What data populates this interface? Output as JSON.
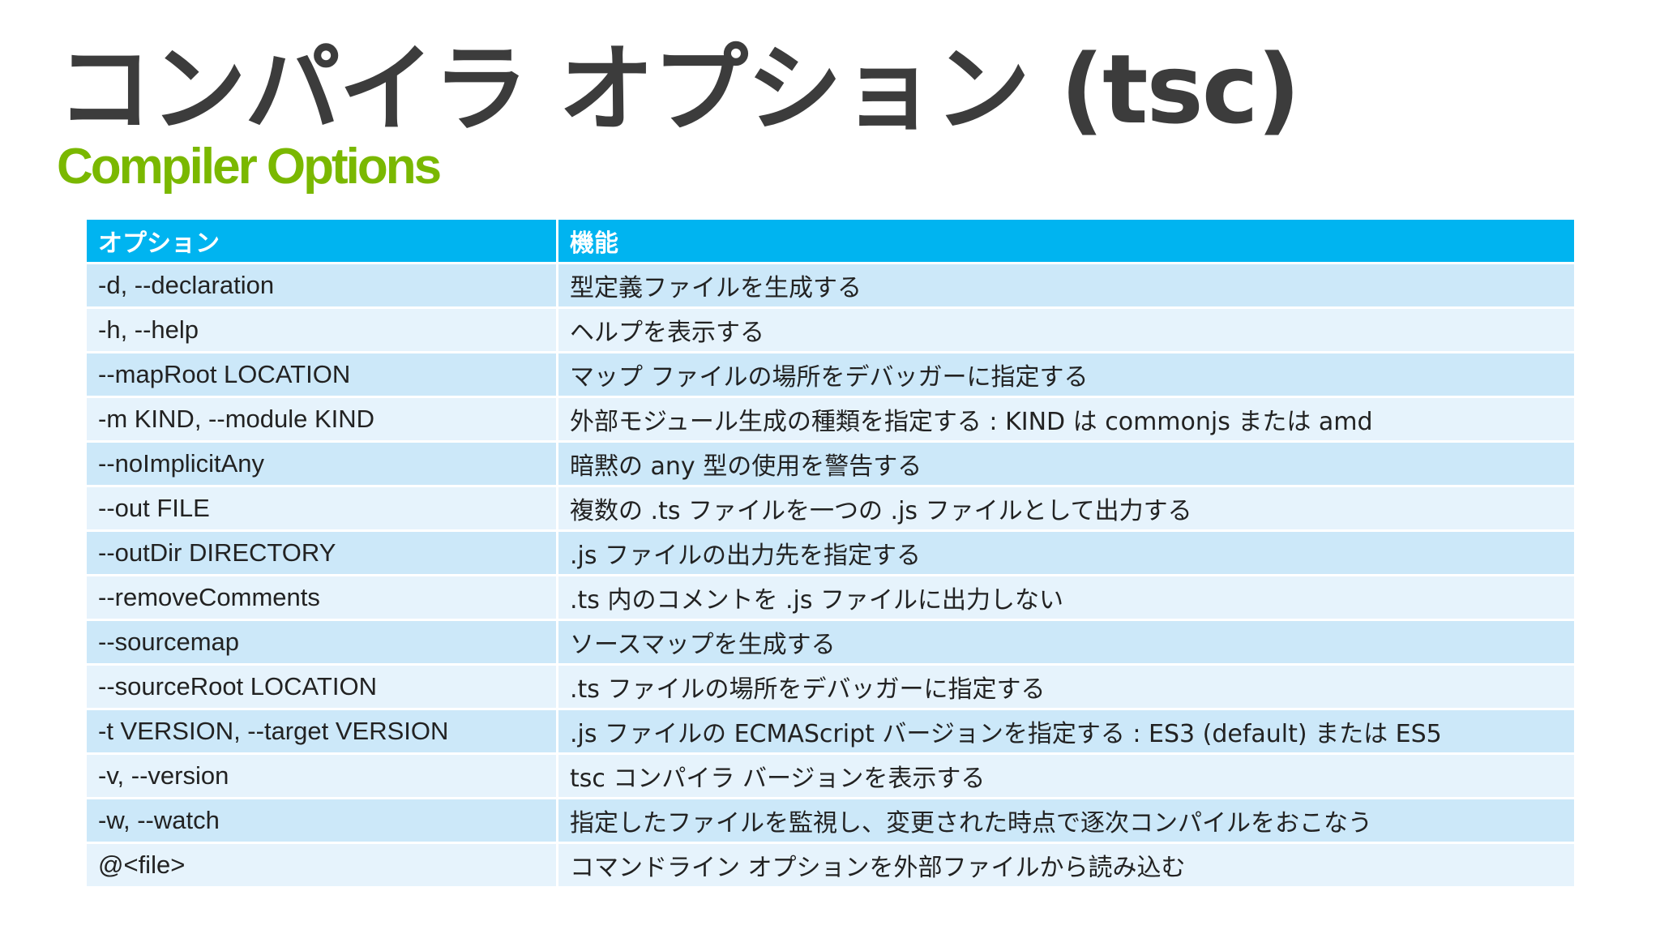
{
  "title": "コンパイラ オプション (tsc)",
  "subtitle": "Compiler Options",
  "table": {
    "headers": [
      "オプション",
      "機能"
    ],
    "rows": [
      {
        "option": "-d, --declaration",
        "description": "型定義ファイルを生成する"
      },
      {
        "option": "-h, --help",
        "description": "ヘルプを表示する"
      },
      {
        "option": "--mapRoot LOCATION",
        "description": "マップ ファイルの場所をデバッガーに指定する"
      },
      {
        "option": "-m KIND, --module KIND",
        "description": "外部モジュール生成の種類を指定する : KIND は commonjs または amd"
      },
      {
        "option": "--noImplicitAny",
        "description": "暗黙の any 型の使用を警告する"
      },
      {
        "option": "--out FILE",
        "description": "複数の .ts ファイルを一つの .js ファイルとして出力する"
      },
      {
        "option": "--outDir DIRECTORY",
        "description": ".js ファイルの出力先を指定する"
      },
      {
        "option": "--removeComments",
        "description": ".ts 内のコメントを .js ファイルに出力しない"
      },
      {
        "option": "--sourcemap",
        "description": "ソースマップを生成する"
      },
      {
        "option": "--sourceRoot LOCATION",
        "description": ".ts ファイルの場所をデバッガーに指定する"
      },
      {
        "option": "-t VERSION, --target VERSION",
        "description": ".js ファイルの ECMAScript バージョンを指定する : ES3 (default) または ES5"
      },
      {
        "option": "-v, --version",
        "description": "tsc コンパイラ バージョンを表示する"
      },
      {
        "option": "-w, --watch",
        "description": "指定したファイルを監視し、変更された時点で逐次コンパイルをおこなう"
      },
      {
        "option": "@<file>",
        "description": "コマンドライン オプションを外部ファイルから読み込む"
      }
    ]
  }
}
